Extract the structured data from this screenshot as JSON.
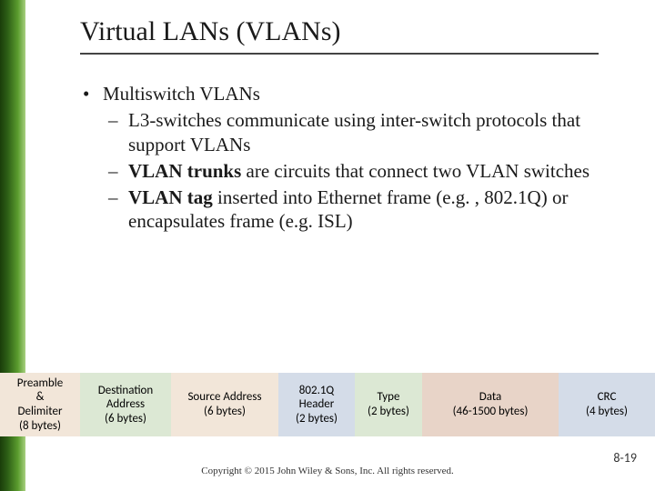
{
  "title": "Virtual LANs (VLANs)",
  "bullets": {
    "main": "Multiswitch VLANs",
    "sub1_a": "L3-switches communicate using inter-switch protocols that support VLANs",
    "sub2_bold": "VLAN trunks",
    "sub2_rest": " are circuits that connect two VLAN switches",
    "sub3_bold": "VLAN tag",
    "sub3_rest": " inserted into Ethernet frame (e.g. , 802.1Q)  or encapsulates frame (e.g. ISL)"
  },
  "frame": [
    {
      "l1": "Preamble",
      "l2": "&",
      "l3": "Delimiter",
      "l4": "(8 bytes)",
      "w": 88,
      "bg": "#f2e6d9"
    },
    {
      "l1": "Destination",
      "l2": "Address",
      "l3": "(6 bytes)",
      "l4": "",
      "w": 100,
      "bg": "#dce8d4"
    },
    {
      "l1": "Source Address",
      "l2": "(6 bytes)",
      "l3": "",
      "l4": "",
      "w": 118,
      "bg": "#f2e6d9"
    },
    {
      "l1": "802.1Q",
      "l2": "Header",
      "l3": "(2 bytes)",
      "l4": "",
      "w": 84,
      "bg": "#d4dce8"
    },
    {
      "l1": "Type",
      "l2": "(2 bytes)",
      "l3": "",
      "l4": "",
      "w": 74,
      "bg": "#dce8d4"
    },
    {
      "l1": "Data",
      "l2": "(46-1500 bytes)",
      "l3": "",
      "l4": "",
      "w": 150,
      "bg": "#e8d4c8"
    },
    {
      "l1": "CRC",
      "l2": "(4 bytes)",
      "l3": "",
      "l4": "",
      "w": 106,
      "bg": "#d4dce8"
    }
  ],
  "footer": "Copyright © 2015 John Wiley & Sons, Inc. All rights reserved.",
  "page": "8-19"
}
